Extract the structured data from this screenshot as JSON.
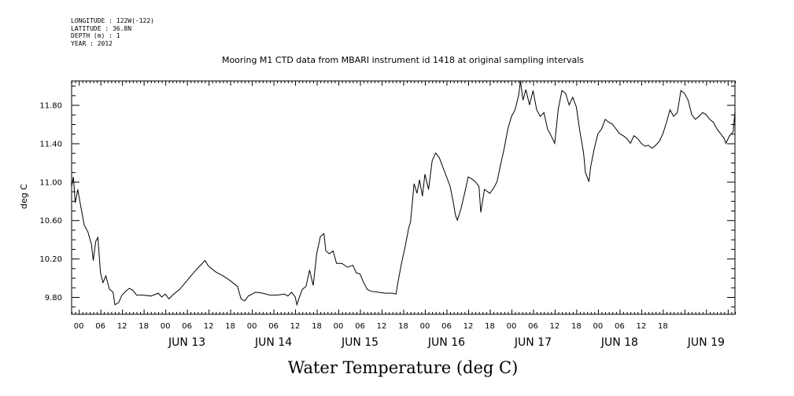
{
  "header": {
    "lines": [
      "LONGITUDE : 122W(-122)",
      "LATITUDE : 36.8N",
      "DEPTH (m) : 1",
      "YEAR : 2012"
    ]
  },
  "chart_data": {
    "type": "line",
    "title": "Mooring M1 CTD data from MBARI instrument id 1418 at original sampling intervals",
    "xlabel": "Water Temperature (deg C)",
    "ylabel": "deg C",
    "ylim": [
      9.62,
      12.05
    ],
    "yticks": [
      "9.80",
      "10.20",
      "10.60",
      "11.00",
      "11.40",
      "11.80"
    ],
    "xlim_hours": [
      -20,
      164
    ],
    "hour_tick_labels": [
      "00",
      "06",
      "12",
      "18",
      "00",
      "06",
      "12",
      "18",
      "00",
      "06",
      "12",
      "18",
      "00",
      "06",
      "12",
      "18",
      "00",
      "06",
      "12",
      "18",
      "00",
      "06",
      "12",
      "18",
      "00",
      "06",
      "12",
      "18"
    ],
    "day_labels": [
      "JUN 13",
      "JUN 14",
      "JUN 15",
      "JUN 16",
      "JUN 17",
      "JUN 18",
      "JUN 19"
    ],
    "grid": false,
    "series": [
      {
        "points": [
          [
            -20,
            10.95
          ],
          [
            -19.5,
            11.05
          ],
          [
            -19,
            10.78
          ],
          [
            -18.3,
            10.92
          ],
          [
            -17.5,
            10.75
          ],
          [
            -16.5,
            10.55
          ],
          [
            -15.5,
            10.48
          ],
          [
            -14.5,
            10.35
          ],
          [
            -14,
            10.18
          ],
          [
            -13.3,
            10.38
          ],
          [
            -12.7,
            10.42
          ],
          [
            -12,
            10.05
          ],
          [
            -11.3,
            9.95
          ],
          [
            -10.5,
            10.02
          ],
          [
            -9.5,
            9.88
          ],
          [
            -8.5,
            9.85
          ],
          [
            -8,
            9.72
          ],
          [
            -7,
            9.74
          ],
          [
            -6,
            9.82
          ],
          [
            -5,
            9.86
          ],
          [
            -4,
            9.89
          ],
          [
            -3,
            9.87
          ],
          [
            -2,
            9.82
          ],
          [
            0,
            9.82
          ],
          [
            2,
            9.81
          ],
          [
            4,
            9.84
          ],
          [
            5,
            9.8
          ],
          [
            6,
            9.83
          ],
          [
            7,
            9.78
          ],
          [
            8,
            9.82
          ],
          [
            10,
            9.88
          ],
          [
            12,
            9.97
          ],
          [
            14,
            10.06
          ],
          [
            15.5,
            10.12
          ],
          [
            17,
            10.18
          ],
          [
            18,
            10.12
          ],
          [
            20,
            10.06
          ],
          [
            22,
            10.02
          ],
          [
            24,
            9.97
          ],
          [
            26,
            9.91
          ],
          [
            27,
            9.78
          ],
          [
            28,
            9.76
          ],
          [
            29,
            9.81
          ],
          [
            31,
            9.85
          ],
          [
            33,
            9.84
          ],
          [
            35,
            9.82
          ],
          [
            37,
            9.82
          ],
          [
            39,
            9.83
          ],
          [
            40,
            9.81
          ],
          [
            41,
            9.85
          ],
          [
            42,
            9.8
          ],
          [
            42.5,
            9.72
          ],
          [
            43,
            9.78
          ],
          [
            44,
            9.88
          ],
          [
            45,
            9.91
          ],
          [
            46,
            10.08
          ],
          [
            47,
            9.92
          ],
          [
            48,
            10.25
          ],
          [
            49,
            10.43
          ],
          [
            50,
            10.46
          ],
          [
            50.5,
            10.28
          ],
          [
            51.5,
            10.25
          ],
          [
            52.5,
            10.28
          ],
          [
            53.5,
            10.15
          ],
          [
            55,
            10.15
          ],
          [
            56.5,
            10.11
          ],
          [
            58,
            10.13
          ],
          [
            59,
            10.05
          ],
          [
            60,
            10.04
          ],
          [
            61,
            9.95
          ],
          [
            62,
            9.88
          ],
          [
            63,
            9.86
          ],
          [
            65,
            9.85
          ],
          [
            67,
            9.84
          ],
          [
            69,
            9.84
          ],
          [
            70,
            9.83
          ],
          [
            70.5,
            9.95
          ],
          [
            71.5,
            10.15
          ],
          [
            72.5,
            10.32
          ],
          [
            73.5,
            10.52
          ],
          [
            74,
            10.58
          ],
          [
            75,
            10.98
          ],
          [
            75.8,
            10.88
          ],
          [
            76.5,
            11.02
          ],
          [
            77.3,
            10.85
          ],
          [
            78,
            11.08
          ],
          [
            79,
            10.92
          ],
          [
            80,
            11.22
          ],
          [
            81,
            11.3
          ],
          [
            82,
            11.25
          ],
          [
            83,
            11.15
          ],
          [
            84,
            11.05
          ],
          [
            85,
            10.95
          ],
          [
            85.8,
            10.8
          ],
          [
            86.5,
            10.65
          ],
          [
            87,
            10.6
          ],
          [
            88,
            10.72
          ],
          [
            89,
            10.88
          ],
          [
            90,
            11.05
          ],
          [
            91,
            11.03
          ],
          [
            92,
            11.0
          ],
          [
            93,
            10.95
          ],
          [
            93.5,
            10.68
          ],
          [
            94.5,
            10.92
          ],
          [
            96,
            10.88
          ],
          [
            97,
            10.93
          ],
          [
            98,
            11.0
          ],
          [
            99,
            11.18
          ],
          [
            100,
            11.35
          ],
          [
            101,
            11.55
          ],
          [
            102,
            11.68
          ],
          [
            103,
            11.75
          ],
          [
            104,
            11.9
          ],
          [
            104.5,
            12.05
          ],
          [
            105.2,
            11.85
          ],
          [
            106,
            11.96
          ],
          [
            107,
            11.8
          ],
          [
            108,
            11.95
          ],
          [
            109,
            11.75
          ],
          [
            110,
            11.68
          ],
          [
            111,
            11.72
          ],
          [
            112,
            11.55
          ],
          [
            113,
            11.48
          ],
          [
            114,
            11.4
          ],
          [
            115,
            11.76
          ],
          [
            116,
            11.95
          ],
          [
            117,
            11.92
          ],
          [
            118,
            11.8
          ],
          [
            119,
            11.88
          ],
          [
            120,
            11.78
          ],
          [
            121,
            11.52
          ],
          [
            122,
            11.3
          ],
          [
            122.5,
            11.1
          ],
          [
            123.5,
            11.0
          ],
          [
            124,
            11.16
          ],
          [
            125,
            11.35
          ],
          [
            126,
            11.5
          ],
          [
            127,
            11.55
          ],
          [
            128,
            11.65
          ],
          [
            129,
            11.62
          ],
          [
            130,
            11.6
          ],
          [
            131,
            11.55
          ],
          [
            132,
            11.5
          ],
          [
            133,
            11.48
          ],
          [
            134,
            11.45
          ],
          [
            135,
            11.4
          ],
          [
            136,
            11.48
          ],
          [
            137,
            11.45
          ],
          [
            138,
            11.4
          ],
          [
            139,
            11.37
          ],
          [
            140,
            11.38
          ],
          [
            141,
            11.35
          ],
          [
            142,
            11.38
          ],
          [
            143,
            11.42
          ],
          [
            144,
            11.5
          ],
          [
            145,
            11.62
          ],
          [
            146,
            11.75
          ],
          [
            147,
            11.68
          ],
          [
            148,
            11.72
          ],
          [
            149,
            11.95
          ],
          [
            150,
            11.92
          ],
          [
            151,
            11.85
          ],
          [
            152,
            11.7
          ],
          [
            153,
            11.65
          ],
          [
            154,
            11.68
          ],
          [
            155,
            11.72
          ],
          [
            156,
            11.7
          ],
          [
            157,
            11.65
          ],
          [
            158,
            11.62
          ],
          [
            159,
            11.55
          ],
          [
            160,
            11.5
          ],
          [
            161,
            11.45
          ],
          [
            161.5,
            11.4
          ],
          [
            162.5,
            11.48
          ],
          [
            163.5,
            11.52
          ],
          [
            164,
            11.73
          ]
        ]
      }
    ]
  }
}
